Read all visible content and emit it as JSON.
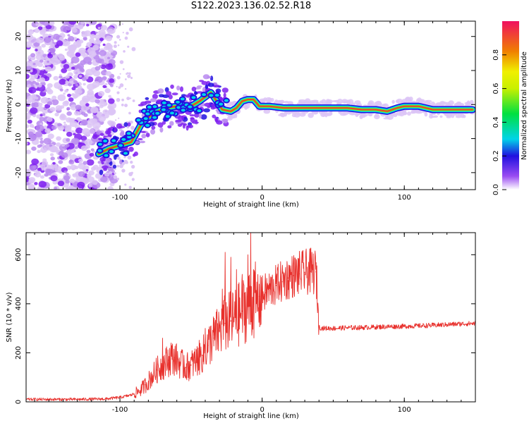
{
  "title": "S122.2023.136.02.52.R18",
  "colors": {
    "snr_line": "#e8302c",
    "scatter_faint": "#dcc4f6",
    "scatter_mid": "#b88af0",
    "scatter_strong": "#7f20f0",
    "ridge_core": "#e83a3a",
    "ridge_mid": "#7ef000",
    "ridge_edge": "#00d4e8",
    "ridge_outer": "#2010e0"
  },
  "chart_data": [
    {
      "type": "heatmap",
      "title": "",
      "xlabel": "Height of straight line (km)",
      "ylabel": "Frequency (Hz)",
      "xlim": [
        -166,
        150
      ],
      "ylim": [
        -25,
        24.5
      ],
      "xticks": [
        -100,
        0,
        100
      ],
      "yticks": [
        -20,
        -10,
        0,
        10,
        20
      ],
      "grid": false,
      "ridge": {
        "x": [
          -115,
          -108,
          -100,
          -92,
          -84,
          -76,
          -68,
          -60,
          -52,
          -44,
          -36,
          -28,
          -22,
          -18,
          -14,
          -10,
          -6,
          -2,
          5,
          15,
          30,
          45,
          60,
          70,
          80,
          88,
          95,
          100,
          110,
          120,
          130,
          140,
          148
        ],
        "y": [
          -14.5,
          -13,
          -12,
          -11,
          -5,
          -2.5,
          -1,
          -0.5,
          -1,
          1,
          3.5,
          -1.5,
          -2,
          -1,
          1,
          1.5,
          1.5,
          -0.5,
          -0.5,
          -1,
          -1,
          -1,
          -1,
          -1.5,
          -1.5,
          -2,
          -1,
          -0.5,
          -0.5,
          -1.5,
          -1.5,
          -1.5,
          -1.5
        ]
      },
      "colorbar": {
        "label": "Normalized spectral amplitude",
        "range": [
          0,
          1
        ],
        "ticks": [
          "0.0",
          "0.2",
          "0.4",
          "0.6",
          "0.8"
        ],
        "tick_values": [
          0.0,
          0.2,
          0.4,
          0.6,
          0.8
        ],
        "colormap": "rainbow"
      }
    },
    {
      "type": "line",
      "title": "",
      "xlabel": "Height of straight line (km)",
      "ylabel": "SNR (10 * v/v)",
      "xlim": [
        -166,
        150
      ],
      "ylim": [
        0,
        690
      ],
      "xticks": [
        -100,
        0,
        100
      ],
      "yticks": [
        0,
        200,
        400,
        600
      ],
      "grid": false,
      "series": [
        {
          "x": [
            -166,
            -150,
            -130,
            -110,
            -100,
            -92,
            -86,
            -82,
            -78,
            -74,
            -70,
            -66,
            -62,
            -58,
            -54,
            -50,
            -46,
            -42,
            -38,
            -34,
            -30,
            -26,
            -22,
            -18,
            -14,
            -10,
            -6,
            -2,
            2,
            6,
            10,
            14,
            18,
            22,
            26,
            30,
            34,
            38,
            40,
            42,
            50,
            60,
            70,
            80,
            90,
            100,
            110,
            120,
            130,
            140,
            150
          ],
          "y": [
            10,
            10,
            10,
            12,
            18,
            28,
            45,
            70,
            100,
            130,
            150,
            170,
            180,
            160,
            140,
            150,
            170,
            190,
            230,
            260,
            290,
            320,
            330,
            345,
            370,
            390,
            410,
            430,
            445,
            460,
            475,
            490,
            505,
            515,
            522,
            528,
            532,
            530,
            305,
            300,
            300,
            302,
            303,
            305,
            307,
            308,
            310,
            312,
            315,
            318,
            320
          ]
        }
      ],
      "spikes": {
        "x": [
          -70,
          -64,
          -55,
          -45,
          -40,
          -36,
          -32,
          -28,
          -26,
          -22,
          -18,
          -14,
          -10,
          -8,
          -6,
          -4,
          -2,
          0,
          4,
          8,
          12,
          16
        ],
        "y": [
          260,
          240,
          190,
          220,
          300,
          310,
          340,
          460,
          610,
          590,
          540,
          520,
          600,
          690,
          540,
          400,
          480,
          440,
          470,
          500,
          490,
          510
        ]
      }
    }
  ]
}
